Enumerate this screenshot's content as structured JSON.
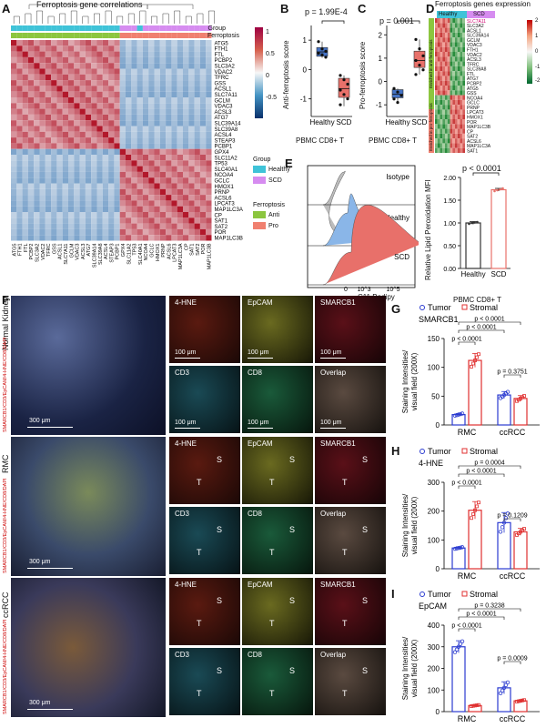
{
  "panelA": {
    "letter": "A",
    "title": "Ferroptosis gene correlations",
    "genes": [
      "ATG5",
      "FTH1",
      "FTL",
      "PCBP2",
      "SLC3A2",
      "VDAC2",
      "TFRC",
      "GSS",
      "ACSL1",
      "SLC7A11",
      "GCLM",
      "VDAC3",
      "ACSL3",
      "ATG7",
      "SLC39A14",
      "SLC39A8",
      "ACSL4",
      "STEAP3",
      "PCBP1",
      "GPX4",
      "SLC11A2",
      "TP53",
      "SLC40A1",
      "NCOA4",
      "GCLC",
      "HMOX1",
      "PRNP",
      "ACSL6",
      "LPCAT3",
      "MAP1LC3A",
      "CP",
      "SAT1",
      "SAT2",
      "POR",
      "MAP1LC3B"
    ],
    "track_labels": [
      "Group",
      "Ferroptosis"
    ],
    "colorbar_ticks": [
      "1",
      "0.5",
      "0",
      "-0.5"
    ],
    "legend_group_title": "Group",
    "legend_group_items": [
      "Healthy",
      "SCD"
    ],
    "legend_ferro_title": "Ferroptosis",
    "legend_ferro_items": [
      "Anti",
      "Pro"
    ],
    "colors": {
      "healthy": "#3fc3d8",
      "scd": "#d68cf0",
      "anti": "#8cc63f",
      "pro": "#f08070",
      "pos": "#b2182b",
      "neg": "#2166ac"
    }
  },
  "panelB": {
    "letter": "B",
    "pvalue": "p = 1.99E-4",
    "ylabel": "Anti-ferroptosis score",
    "xlabel": "PBMC CD8+ T",
    "chart_data": {
      "type": "box",
      "categories": [
        "Healthy",
        "SCD"
      ],
      "yticks": [
        "1",
        "0",
        "-1"
      ],
      "ylim": [
        -1.6,
        1.5
      ],
      "healthy": {
        "q1": 0.45,
        "median": 0.6,
        "q3": 0.75,
        "min": 0.4,
        "max": 0.95,
        "points": [
          0.95,
          0.7,
          0.62,
          0.55,
          0.5,
          0.42
        ]
      },
      "scd": {
        "q1": -0.95,
        "median": -0.65,
        "q3": -0.3,
        "min": -1.25,
        "max": -0.2,
        "points": [
          -0.2,
          -0.35,
          -0.5,
          -0.7,
          -0.85,
          -1.0,
          -1.2
        ]
      }
    }
  },
  "panelC": {
    "letter": "C",
    "pvalue": "p = 0.001",
    "ylabel": "Pro-ferroptosis score",
    "xlabel": "PBMC CD8+ T",
    "chart_data": {
      "type": "box",
      "categories": [
        "Healthy",
        "SCD"
      ],
      "yticks": [
        "2",
        "1",
        "0",
        "-1"
      ],
      "ylim": [
        -1.5,
        2.4
      ],
      "healthy": {
        "q1": -0.7,
        "median": -0.55,
        "q3": -0.35,
        "min": -0.9,
        "max": -0.3,
        "points": [
          -0.3,
          -0.45,
          -0.6,
          -0.75,
          -0.9
        ]
      },
      "scd": {
        "q1": 0.6,
        "median": 0.9,
        "q3": 1.3,
        "min": 0.3,
        "max": 1.8,
        "points": [
          1.8,
          1.4,
          1.1,
          0.9,
          0.7,
          0.5,
          0.3
        ]
      }
    }
  },
  "panelD": {
    "letter": "D",
    "title": "Ferroptosis genes expression",
    "top_labels": [
      "Healthy",
      "SCD"
    ],
    "side_labels": [
      "Enriched in anti-ferroptosis",
      "Enriched in pro-ferroptosis"
    ],
    "genes": [
      "SLC7A11",
      "SLC3A2",
      "ACSL1",
      "SLC39A14",
      "GCLM",
      "VDAC3",
      "FTH1",
      "VDAC2",
      "ACSL3",
      "TFRC",
      "SLC39A8",
      "FTL",
      "ATG7",
      "PCBP2",
      "ATG5",
      "GSS",
      "NCOA4",
      "GCLC",
      "PRNP",
      "LPCAT3",
      "HMOX1",
      "POR",
      "MAP1LC3B",
      "CP",
      "SAT2",
      "ACSL6",
      "MAP1LC3A",
      "SAT1"
    ],
    "colorbar_ticks": [
      "2",
      "1",
      "0",
      "-1",
      "-2"
    ]
  },
  "panelE": {
    "letter": "E",
    "labels": [
      "Isotype",
      "Healthy",
      "SCD"
    ],
    "xlabel": "C11 Bodipy",
    "xticks": [
      "0",
      "10^3",
      "10^5"
    ],
    "pvalue": "p < 0.0001",
    "ylabel": "Relative Lipid Peroxidation MFI",
    "xlabel2": "PBMC CD8+ T",
    "chart_data": {
      "type": "bar",
      "categories": [
        "Healthy",
        "SCD"
      ],
      "values": [
        1.0,
        1.73
      ],
      "errors": [
        0.03,
        0.03
      ],
      "yticks": [
        "0.00",
        "0.50",
        "1.00",
        "1.50",
        "2.00"
      ],
      "ylim": [
        0,
        2.0
      ],
      "points": {
        "Healthy": [
          0.98,
          1.0,
          1.01,
          1.02
        ],
        "SCD": [
          1.7,
          1.72,
          1.74,
          1.76
        ]
      }
    }
  },
  "panelF": {
    "letter": "F",
    "rows": [
      {
        "label": "Normal Kidney",
        "stain_label": "SMARCB1/CD3/EpCAM/4-HNE/CD8/DAPI",
        "scale": "300 μm",
        "tiles": [
          "4-HNE",
          "EpCAM",
          "SMARCB1",
          "CD3",
          "CD8",
          "Overlap"
        ],
        "tile_scale": "100 μm"
      },
      {
        "label": "RMC",
        "stain_label": "SMARCB1/CD3/EpCAM/4-HNE/CD8/DAPI",
        "scale": "300 μm",
        "tiles": [
          "4-HNE",
          "EpCAM",
          "SMARCB1",
          "CD3",
          "CD8",
          "Overlap"
        ],
        "tile_scale": ""
      },
      {
        "label": "ccRCC",
        "stain_label": "SMARCB1/CD3/EpCAM/4-HNE/CD8/DAPI",
        "scale": "300 μm",
        "tiles": [
          "4-HNE",
          "EpCAM",
          "SMARCB1",
          "CD3",
          "CD8",
          "Overlap"
        ],
        "tile_scale": ""
      }
    ],
    "region_labels": [
      "S",
      "T"
    ]
  },
  "panelG": {
    "letter": "G",
    "marker": "SMARCB1",
    "legend": [
      "Tumor",
      "Stromal"
    ],
    "ylabel": "Staining Intensities/ visual field (200X)",
    "pvalues": [
      "p < 0.0001",
      "p < 0.0001",
      "p < 0.0001",
      "p = 0.3751"
    ],
    "chart_data": {
      "type": "bar",
      "categories": [
        "RMC",
        "ccRCC"
      ],
      "ylim": [
        0,
        150
      ],
      "yticks": [
        "0",
        "50",
        "100",
        "150"
      ],
      "series": [
        {
          "name": "Tumor",
          "values": [
            18,
            52
          ],
          "errors": [
            2,
            6
          ]
        },
        {
          "name": "Stromal",
          "values": [
            112,
            46
          ],
          "errors": [
            12,
            5
          ]
        }
      ]
    }
  },
  "panelH": {
    "letter": "H",
    "marker": "4-HNE",
    "legend": [
      "Tumor",
      "Stromal"
    ],
    "ylabel": "Staining Intensities/ visual field (200X)",
    "pvalues": [
      "p = 0.0004",
      "p < 0.0001",
      "p < 0.0001",
      "p = 0.1209"
    ],
    "chart_data": {
      "type": "bar",
      "categories": [
        "RMC",
        "ccRCC"
      ],
      "ylim": [
        0,
        300
      ],
      "yticks": [
        "0",
        "100",
        "200",
        "300"
      ],
      "series": [
        {
          "name": "Tumor",
          "values": [
            72,
            160
          ],
          "errors": [
            3,
            35
          ]
        },
        {
          "name": "Stromal",
          "values": [
            203,
            128
          ],
          "errors": [
            30,
            12
          ]
        }
      ]
    }
  },
  "panelI": {
    "letter": "I",
    "marker": "EpCAM",
    "legend": [
      "Tumor",
      "Stromal"
    ],
    "ylabel": "Staining Intensities/ visual field (200X)",
    "pvalues": [
      "p = 0.3238",
      "p < 0.0001",
      "p < 0.0001",
      "p = 0.0009"
    ],
    "chart_data": {
      "type": "bar",
      "categories": [
        "RMC",
        "ccRCC"
      ],
      "ylim": [
        0,
        400
      ],
      "yticks": [
        "0",
        "100",
        "200",
        "300",
        "400"
      ],
      "series": [
        {
          "name": "Tumor",
          "values": [
            300,
            110
          ],
          "errors": [
            28,
            28
          ]
        },
        {
          "name": "Stromal",
          "values": [
            28,
            50
          ],
          "errors": [
            3,
            4
          ]
        }
      ]
    }
  }
}
